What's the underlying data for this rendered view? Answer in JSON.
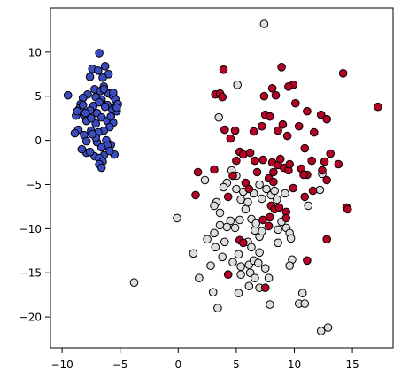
{
  "chart_data": {
    "type": "scatter",
    "title": "",
    "xlabel": "",
    "ylabel": "",
    "xlim": [
      -11,
      18.5
    ],
    "ylim": [
      -23.5,
      15
    ],
    "xticks": [
      -10,
      -5,
      0,
      5,
      10,
      15
    ],
    "yticks": [
      -20,
      -15,
      -10,
      -5,
      0,
      5,
      10
    ],
    "grid": false,
    "legend": "none",
    "series": [
      {
        "color": "#3b4cc0",
        "points": [
          [
            -6.8,
            9.9
          ],
          [
            -7.4,
            8.1
          ],
          [
            -6.3,
            8.4
          ],
          [
            -6.0,
            7.5
          ],
          [
            -6.9,
            7.9
          ],
          [
            -7.6,
            7.2
          ],
          [
            -6.5,
            7.1
          ],
          [
            -6.4,
            6.1
          ],
          [
            -7.2,
            5.8
          ],
          [
            -6.7,
            5.6
          ],
          [
            -6.0,
            5.3
          ],
          [
            -5.6,
            5.0
          ],
          [
            -5.4,
            4.6
          ],
          [
            -5.2,
            4.1
          ],
          [
            -5.3,
            3.3
          ],
          [
            -5.7,
            3.6
          ],
          [
            -6.1,
            4.0
          ],
          [
            -6.6,
            4.6
          ],
          [
            -7.1,
            4.9
          ],
          [
            -7.8,
            5.2
          ],
          [
            -8.2,
            4.8
          ],
          [
            -8.4,
            4.1
          ],
          [
            -8.5,
            3.6
          ],
          [
            -8.1,
            2.9
          ],
          [
            -8.8,
            2.8
          ],
          [
            -9.5,
            5.1
          ],
          [
            -7.3,
            3.9
          ],
          [
            -7.6,
            3.4
          ],
          [
            -7.0,
            3.1
          ],
          [
            -6.6,
            2.6
          ],
          [
            -6.1,
            2.2
          ],
          [
            -5.6,
            2.0
          ],
          [
            -5.9,
            1.5
          ],
          [
            -6.4,
            1.1
          ],
          [
            -6.9,
            0.9
          ],
          [
            -7.5,
            1.1
          ],
          [
            -8.1,
            0.6
          ],
          [
            -8.6,
            1.2
          ],
          [
            -8.9,
            0.8
          ],
          [
            -7.9,
            -0.1
          ],
          [
            -7.0,
            -0.2
          ],
          [
            -6.2,
            0.0
          ],
          [
            -5.8,
            -0.5
          ],
          [
            -6.1,
            -0.6
          ],
          [
            -5.5,
            -1.6
          ],
          [
            -6.4,
            -1.7
          ],
          [
            -7.2,
            -1.8
          ],
          [
            -7.9,
            -1.4
          ],
          [
            -8.3,
            -1.0
          ],
          [
            -6.8,
            -2.0
          ],
          [
            -6.5,
            -2.4
          ],
          [
            -6.8,
            -2.7
          ],
          [
            -6.6,
            -3.1
          ],
          [
            -7.6,
            -1.3
          ],
          [
            -5.9,
            -1.2
          ],
          [
            -7.1,
            1.9
          ],
          [
            -6.3,
            3.8
          ],
          [
            -5.6,
            5.4
          ],
          [
            -7.9,
            2.2
          ],
          [
            -6.8,
            4.3
          ],
          [
            -5.8,
            2.7
          ],
          [
            -8.0,
            3.1
          ],
          [
            -6.4,
            5.8
          ],
          [
            -7.1,
            0.3
          ],
          [
            -8.7,
            3.3
          ],
          [
            -7.5,
            2.5
          ],
          [
            -5.3,
            3.7
          ],
          [
            -6.6,
            -0.8
          ],
          [
            -7.4,
            0.7
          ],
          [
            -8.2,
            4.0
          ]
        ]
      },
      {
        "color": "#dddddd",
        "points": [
          [
            7.4,
            13.2
          ],
          [
            5.1,
            6.3
          ],
          [
            3.5,
            2.6
          ],
          [
            2.3,
            -4.5
          ],
          [
            4.6,
            -3.4
          ],
          [
            5.0,
            -4.0
          ],
          [
            4.2,
            -4.8
          ],
          [
            3.9,
            -5.3
          ],
          [
            5.6,
            -5.8
          ],
          [
            5.0,
            -5.5
          ],
          [
            5.4,
            -6.7
          ],
          [
            6.5,
            -6.0
          ],
          [
            7.0,
            -5.0
          ],
          [
            7.6,
            -5.5
          ],
          [
            8.0,
            -6.2
          ],
          [
            8.5,
            -6.7
          ],
          [
            9.2,
            -6.0
          ],
          [
            7.2,
            -6.6
          ],
          [
            6.0,
            -7.0
          ],
          [
            3.3,
            -7.0
          ],
          [
            3.1,
            -7.4
          ],
          [
            3.6,
            -8.2
          ],
          [
            4.5,
            -9.1
          ],
          [
            5.3,
            -9.0
          ],
          [
            6.3,
            -8.9
          ],
          [
            3.6,
            -9.6
          ],
          [
            4.2,
            -9.8
          ],
          [
            3.1,
            -10.5
          ],
          [
            2.5,
            -11.2
          ],
          [
            4.0,
            -11.5
          ],
          [
            3.2,
            -12.1
          ],
          [
            6.0,
            -11.5
          ],
          [
            7.0,
            -10.9
          ],
          [
            7.2,
            -10.3
          ],
          [
            6.6,
            -10.2
          ],
          [
            8.6,
            -10.1
          ],
          [
            9.3,
            -9.9
          ],
          [
            9.6,
            -10.5
          ],
          [
            9.7,
            -11.1
          ],
          [
            8.6,
            -11.6
          ],
          [
            7.0,
            -12.7
          ],
          [
            5.2,
            -12.9
          ],
          [
            3.8,
            -13.2
          ],
          [
            1.3,
            -12.8
          ],
          [
            2.8,
            -14.2
          ],
          [
            4.7,
            -13.8
          ],
          [
            5.4,
            -14.3
          ],
          [
            6.1,
            -14.1
          ],
          [
            6.5,
            -13.6
          ],
          [
            6.9,
            -13.9
          ],
          [
            7.5,
            -14.5
          ],
          [
            6.2,
            -15.0
          ],
          [
            5.4,
            -15.2
          ],
          [
            6.6,
            -15.6
          ],
          [
            7.8,
            -15.6
          ],
          [
            6.1,
            -16.5
          ],
          [
            7.0,
            -16.7
          ],
          [
            5.2,
            -17.3
          ],
          [
            3.0,
            -17.2
          ],
          [
            3.4,
            -19.0
          ],
          [
            7.9,
            -18.6
          ],
          [
            9.8,
            -13.5
          ],
          [
            9.6,
            -14.2
          ],
          [
            10.7,
            -17.3
          ],
          [
            10.4,
            -18.5
          ],
          [
            10.9,
            -18.5
          ],
          [
            12.3,
            -21.6
          ],
          [
            12.9,
            -21.2
          ],
          [
            11.2,
            -7.4
          ],
          [
            12.2,
            -5.6
          ],
          [
            12.4,
            -3.8
          ],
          [
            1.8,
            -15.6
          ],
          [
            -0.1,
            -8.8
          ],
          [
            -3.8,
            -16.1
          ],
          [
            8.3,
            -5.7
          ],
          [
            6.7,
            -9.4
          ],
          [
            4.9,
            -9.9
          ],
          [
            5.8,
            -7.8
          ],
          [
            8.9,
            -9.2
          ],
          [
            6.3,
            -12.1
          ]
        ]
      },
      {
        "color": "#b40426",
        "points": [
          [
            14.2,
            7.6
          ],
          [
            17.2,
            3.8
          ],
          [
            3.9,
            8.0
          ],
          [
            8.9,
            8.3
          ],
          [
            9.9,
            6.3
          ],
          [
            9.5,
            6.1
          ],
          [
            8.1,
            5.9
          ],
          [
            3.2,
            5.2
          ],
          [
            3.6,
            5.3
          ],
          [
            3.8,
            4.9
          ],
          [
            7.4,
            5.0
          ],
          [
            8.4,
            5.1
          ],
          [
            10.1,
            4.2
          ],
          [
            11.1,
            3.3
          ],
          [
            7.5,
            2.9
          ],
          [
            7.9,
            2.7
          ],
          [
            10.4,
            1.6
          ],
          [
            12.3,
            2.9
          ],
          [
            12.8,
            2.4
          ],
          [
            4.9,
            1.1
          ],
          [
            6.5,
            1.0
          ],
          [
            7.2,
            1.6
          ],
          [
            8.6,
            1.1
          ],
          [
            9.4,
            0.5
          ],
          [
            4.0,
            1.2
          ],
          [
            5.3,
            -1.3
          ],
          [
            5.6,
            -1.6
          ],
          [
            6.2,
            -1.4
          ],
          [
            6.6,
            -2.3
          ],
          [
            5.0,
            -2.3
          ],
          [
            7.3,
            -2.2
          ],
          [
            8.1,
            -2.5
          ],
          [
            8.6,
            -2.8
          ],
          [
            9.1,
            -3.1
          ],
          [
            9.5,
            -3.4
          ],
          [
            8.2,
            -3.6
          ],
          [
            9.6,
            -2.7
          ],
          [
            10.6,
            -3.2
          ],
          [
            11.5,
            -2.3
          ],
          [
            12.6,
            -2.4
          ],
          [
            12.4,
            -3.4
          ],
          [
            12.8,
            -4.5
          ],
          [
            11.1,
            -3.9
          ],
          [
            10.8,
            -3.9
          ],
          [
            13.8,
            -2.7
          ],
          [
            1.7,
            -3.6
          ],
          [
            3.1,
            -3.3
          ],
          [
            4.7,
            -4.0
          ],
          [
            5.8,
            -4.8
          ],
          [
            7.8,
            -4.3
          ],
          [
            8.2,
            -4.7
          ],
          [
            9.9,
            -5.4
          ],
          [
            11.6,
            -5.7
          ],
          [
            10.9,
            -6.4
          ],
          [
            14.5,
            -7.6
          ],
          [
            14.6,
            -7.8
          ],
          [
            1.5,
            -6.2
          ],
          [
            4.3,
            -6.4
          ],
          [
            8.0,
            -7.4
          ],
          [
            8.3,
            -7.8
          ],
          [
            8.7,
            -7.6
          ],
          [
            9.3,
            -8.1
          ],
          [
            9.3,
            -8.8
          ],
          [
            7.9,
            -8.7
          ],
          [
            7.3,
            -9.0
          ],
          [
            7.8,
            -9.7
          ],
          [
            5.3,
            -11.3
          ],
          [
            5.6,
            -11.6
          ],
          [
            12.8,
            -11.2
          ],
          [
            11.1,
            -13.6
          ],
          [
            4.3,
            -15.2
          ],
          [
            7.5,
            -16.7
          ],
          [
            6.1,
            -5.5
          ],
          [
            8.8,
            -2.1
          ],
          [
            10.9,
            -0.9
          ],
          [
            4.5,
            0.2
          ],
          [
            9.0,
            1.8
          ],
          [
            13.1,
            -1.5
          ],
          [
            6.8,
            -3.6
          ],
          [
            11.7,
            0.9
          ]
        ]
      }
    ]
  }
}
